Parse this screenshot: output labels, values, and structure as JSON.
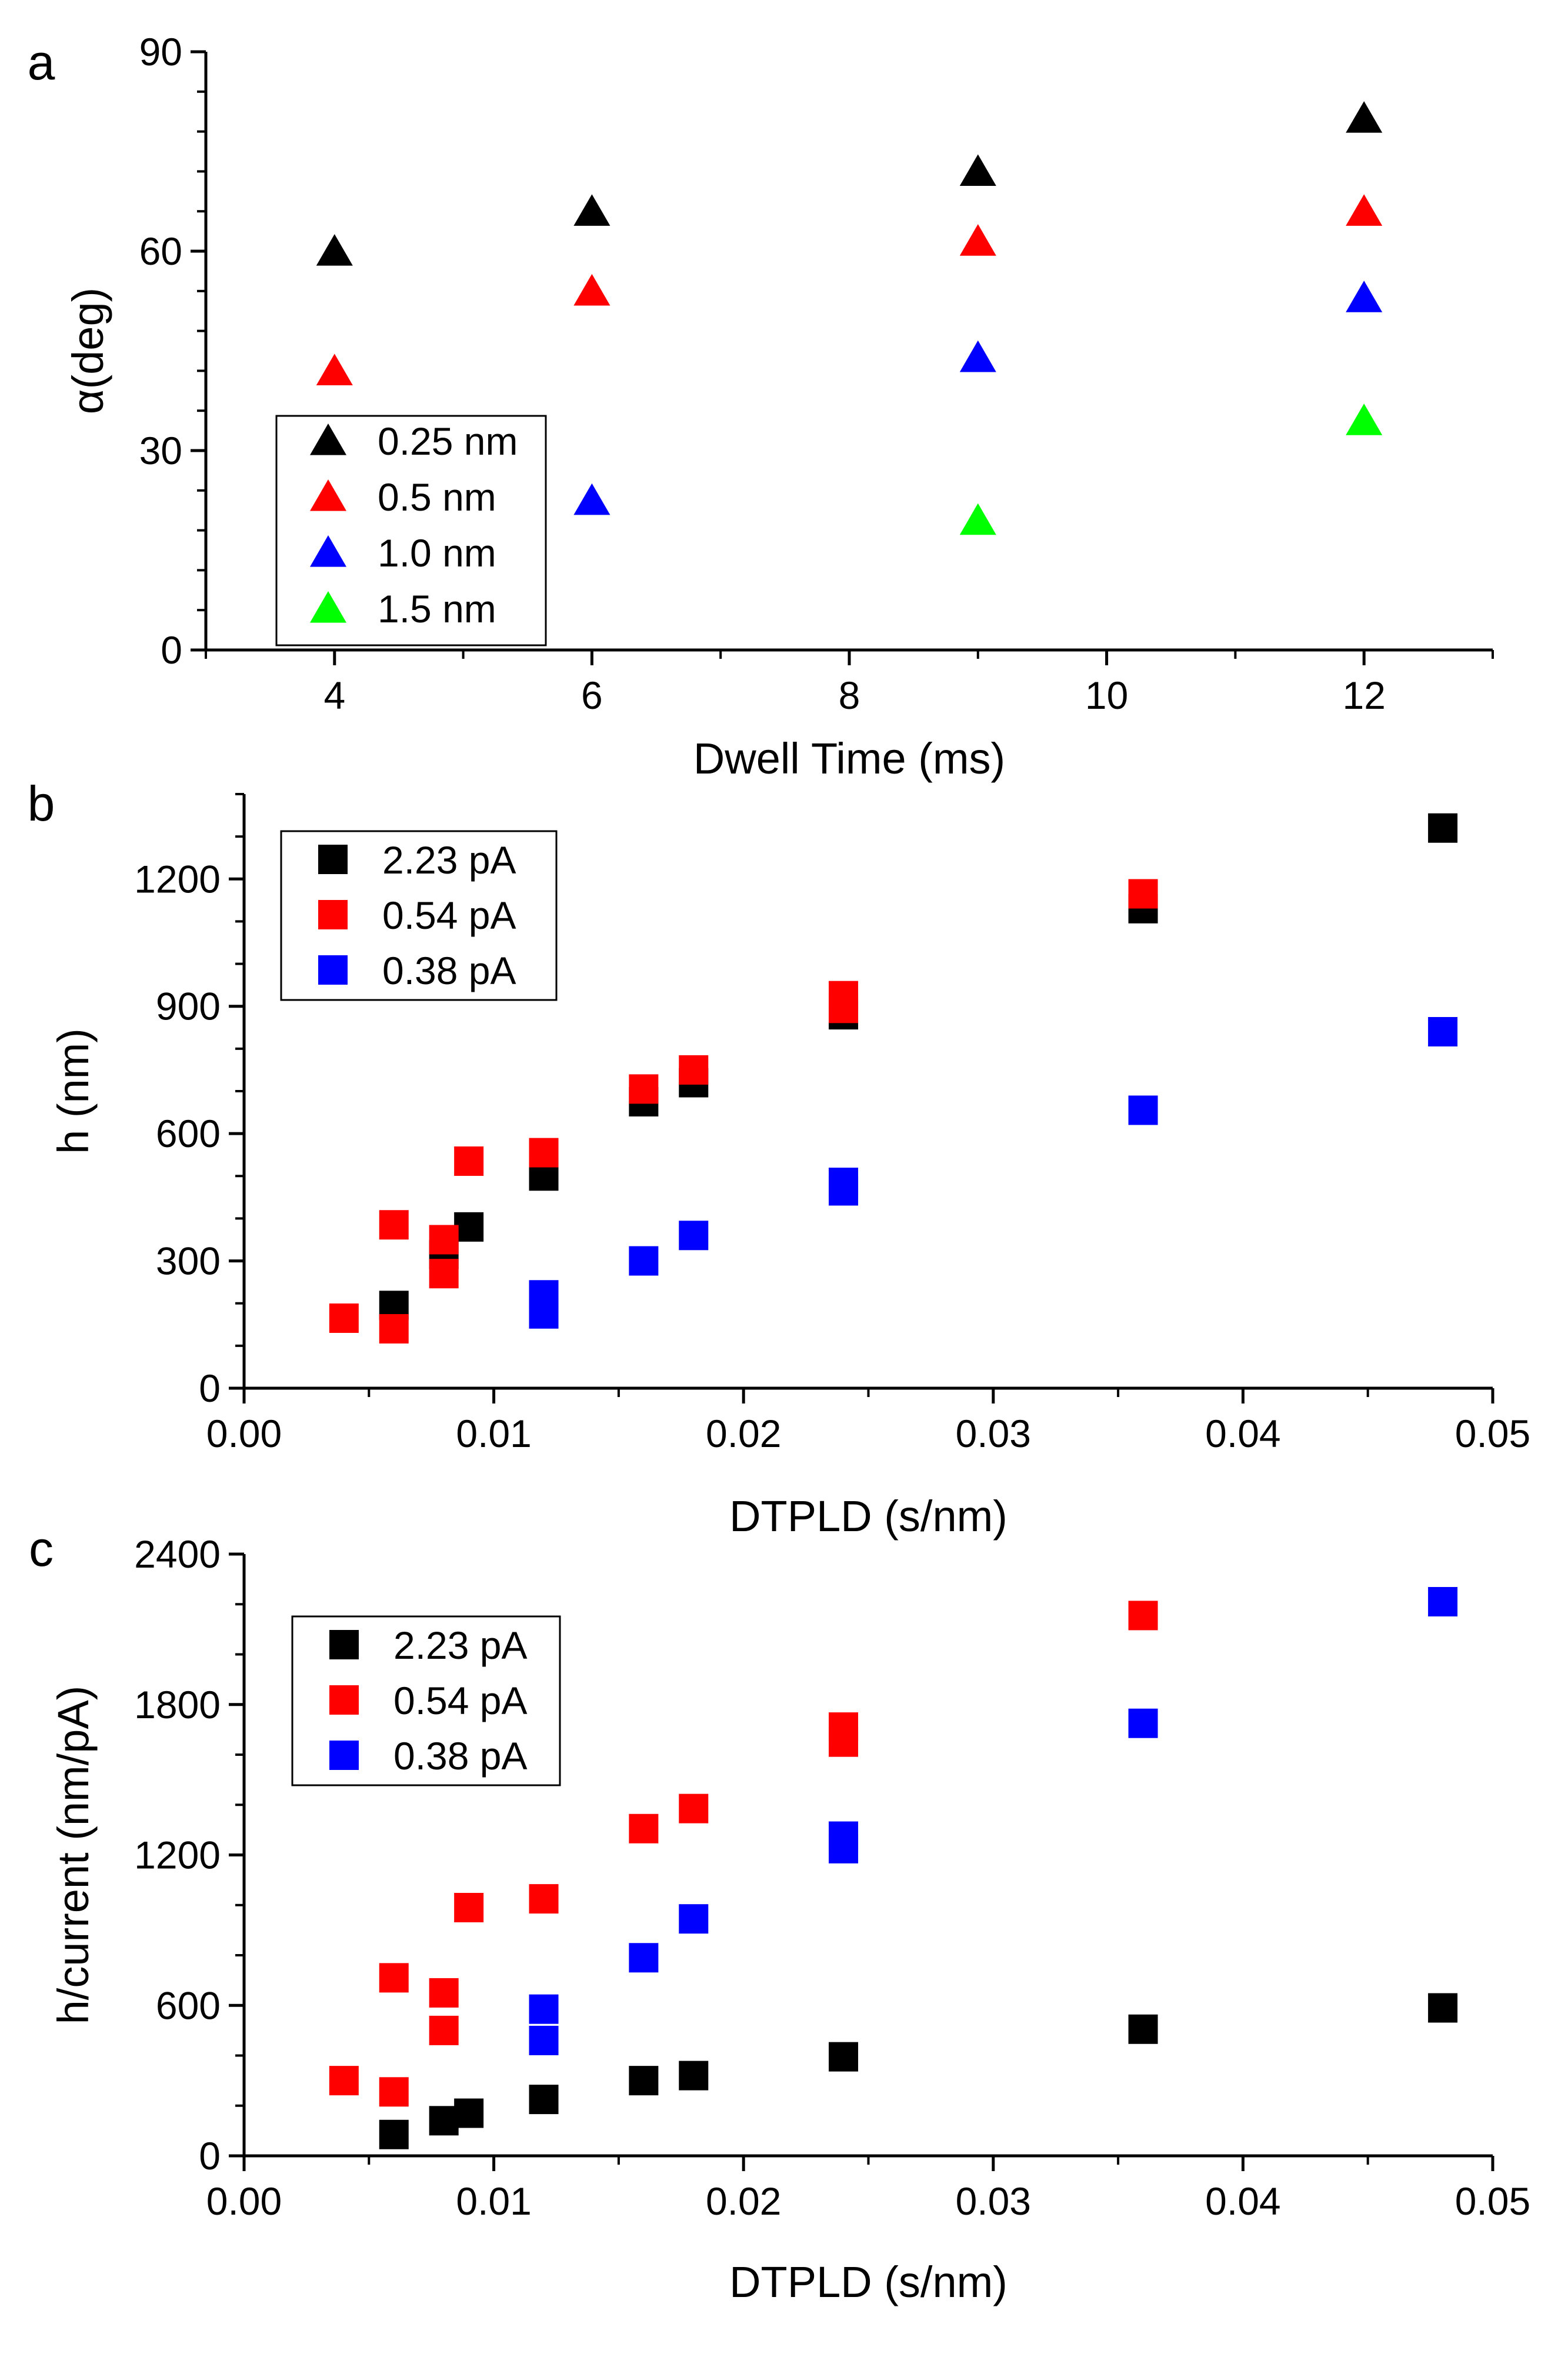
{
  "chart_data": [
    {
      "type": "scatter",
      "panel_label": "a",
      "title": "",
      "xlabel": "Dwell Time (ms)",
      "ylabel": "α(deg)",
      "xlim": [
        3,
        13
      ],
      "ylim": [
        0,
        90
      ],
      "xticks": [
        4,
        6,
        8,
        10,
        12
      ],
      "yticks": [
        0,
        30,
        60,
        90
      ],
      "xtick_labels": [
        "4",
        "6",
        "8",
        "10",
        "12"
      ],
      "ytick_labels": [
        "0",
        "30",
        "60",
        "90"
      ],
      "marker": "triangle",
      "grid": false,
      "legend_position": "bottom-left",
      "series": [
        {
          "name": "0.25 nm",
          "color": "#000000",
          "points": [
            [
              4,
              60
            ],
            [
              6,
              66
            ],
            [
              9,
              72
            ],
            [
              12,
              80
            ]
          ]
        },
        {
          "name": "0.5 nm",
          "color": "#ff0000",
          "points": [
            [
              4,
              42
            ],
            [
              6,
              54
            ],
            [
              9,
              61.5
            ],
            [
              12,
              66
            ]
          ]
        },
        {
          "name": "1.0 nm",
          "color": "#0000ff",
          "points": [
            [
              6,
              22.5
            ],
            [
              9,
              44
            ],
            [
              12,
              53
            ]
          ]
        },
        {
          "name": "1.5 nm",
          "color": "#00ff00",
          "points": [
            [
              9,
              19.5
            ],
            [
              12,
              34.5
            ]
          ]
        }
      ]
    },
    {
      "type": "scatter",
      "panel_label": "b",
      "title": "",
      "xlabel": "DTPLD (s/nm)",
      "ylabel": "h (nm)",
      "xlim": [
        0,
        0.05
      ],
      "ylim": [
        0,
        1400
      ],
      "xticks": [
        0,
        0.01,
        0.02,
        0.03,
        0.04,
        0.05
      ],
      "yticks": [
        0,
        300,
        600,
        900,
        1200
      ],
      "xtick_labels": [
        "0.00",
        "0.01",
        "0.02",
        "0.03",
        "0.04",
        "0.05"
      ],
      "ytick_labels": [
        "0",
        "300",
        "600",
        "900",
        "1200"
      ],
      "marker": "square",
      "grid": false,
      "legend_position": "top-left",
      "series": [
        {
          "name": "2.23 pA",
          "color": "#000000",
          "points": [
            [
              0.006,
              195
            ],
            [
              0.008,
              315
            ],
            [
              0.009,
              380
            ],
            [
              0.012,
              500
            ],
            [
              0.016,
              675
            ],
            [
              0.018,
              720
            ],
            [
              0.024,
              880
            ],
            [
              0.036,
              1130
            ],
            [
              0.048,
              1320
            ]
          ]
        },
        {
          "name": "0.54 pA",
          "color": "#ff0000",
          "points": [
            [
              0.004,
              165
            ],
            [
              0.006,
              140
            ],
            [
              0.006,
              385
            ],
            [
              0.008,
              270
            ],
            [
              0.008,
              350
            ],
            [
              0.009,
              535
            ],
            [
              0.012,
              555
            ],
            [
              0.016,
              705
            ],
            [
              0.018,
              750
            ],
            [
              0.024,
              895
            ],
            [
              0.024,
              925
            ],
            [
              0.036,
              1165
            ]
          ]
        },
        {
          "name": "0.38 pA",
          "color": "#0000ff",
          "points": [
            [
              0.012,
              175
            ],
            [
              0.012,
              220
            ],
            [
              0.016,
              300
            ],
            [
              0.018,
              360
            ],
            [
              0.024,
              465
            ],
            [
              0.024,
              485
            ],
            [
              0.036,
              655
            ],
            [
              0.048,
              840
            ]
          ]
        }
      ]
    },
    {
      "type": "scatter",
      "panel_label": "c",
      "title": "",
      "xlabel": "DTPLD (s/nm)",
      "ylabel": "h/current (nm/pA)",
      "xlim": [
        0,
        0.05
      ],
      "ylim": [
        0,
        2400
      ],
      "xticks": [
        0,
        0.01,
        0.02,
        0.03,
        0.04,
        0.05
      ],
      "yticks": [
        0,
        600,
        1200,
        1800,
        2400
      ],
      "xtick_labels": [
        "0.00",
        "0.01",
        "0.02",
        "0.03",
        "0.04",
        "0.05"
      ],
      "ytick_labels": [
        "0",
        "600",
        "1200",
        "1800",
        "2400"
      ],
      "marker": "square",
      "grid": false,
      "legend_position": "top-left",
      "series": [
        {
          "name": "2.23 pA",
          "color": "#000000",
          "points": [
            [
              0.006,
              85
            ],
            [
              0.008,
              140
            ],
            [
              0.009,
              170
            ],
            [
              0.012,
              225
            ],
            [
              0.016,
              300
            ],
            [
              0.018,
              320
            ],
            [
              0.024,
              395
            ],
            [
              0.036,
              505
            ],
            [
              0.048,
              590
            ]
          ]
        },
        {
          "name": "0.54 pA",
          "color": "#ff0000",
          "points": [
            [
              0.004,
              300
            ],
            [
              0.006,
              255
            ],
            [
              0.006,
              710
            ],
            [
              0.008,
              500
            ],
            [
              0.008,
              650
            ],
            [
              0.009,
              990
            ],
            [
              0.012,
              1025
            ],
            [
              0.016,
              1305
            ],
            [
              0.018,
              1385
            ],
            [
              0.024,
              1650
            ],
            [
              0.024,
              1710
            ],
            [
              0.036,
              2155
            ]
          ]
        },
        {
          "name": "0.38 pA",
          "color": "#0000ff",
          "points": [
            [
              0.012,
              460
            ],
            [
              0.012,
              585
            ],
            [
              0.016,
              790
            ],
            [
              0.018,
              945
            ],
            [
              0.024,
              1225
            ],
            [
              0.024,
              1275
            ],
            [
              0.036,
              1725
            ],
            [
              0.048,
              2210
            ]
          ]
        }
      ]
    }
  ]
}
